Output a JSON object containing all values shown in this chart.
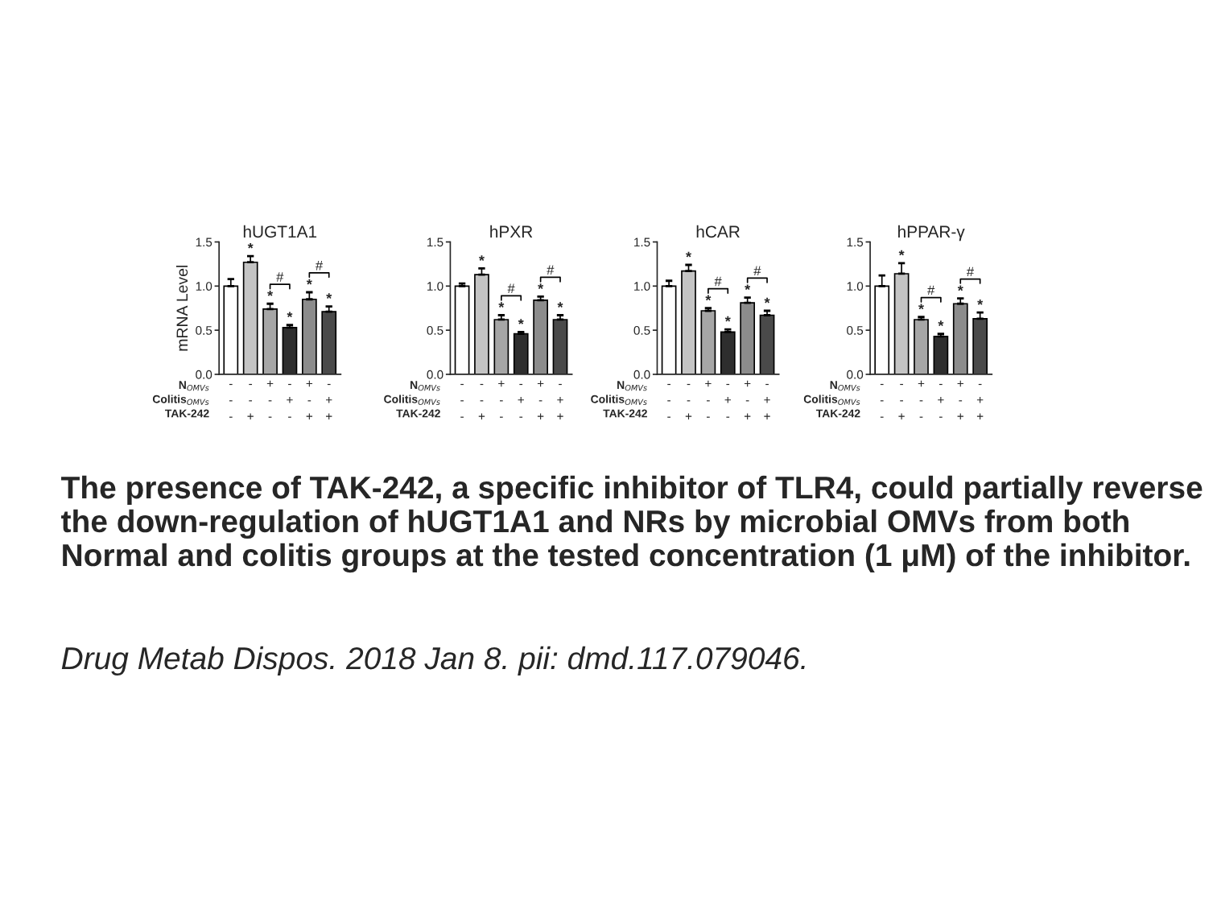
{
  "chart_data": [
    {
      "type": "bar",
      "title": "hUGT1A1",
      "ylabel": "mRNA Level",
      "categories": [
        "-\n-\n-",
        "-\n-\n+",
        "+\n-\n-",
        "-\n+\n-",
        "+\n-\n+",
        "-\n+\n+"
      ],
      "values": [
        1.0,
        1.27,
        0.74,
        0.53,
        0.85,
        0.71
      ],
      "errors": [
        0.08,
        0.07,
        0.06,
        0.03,
        0.08,
        0.06
      ],
      "value_labels": [
        null,
        "*",
        "*",
        "*",
        "*",
        "*"
      ],
      "colors": [
        "#ffffff",
        "#c4c4c4",
        "#a6a6a6",
        "#2e2e2e",
        "#8c8c8c",
        "#4a4a4a"
      ],
      "ylim": [
        0,
        1.5
      ],
      "yticks": [
        {
          "value": 0,
          "label": "0.0"
        },
        {
          "value": 0.5,
          "label": "0.5"
        },
        {
          "value": 1.0,
          "label": "1.0"
        },
        {
          "value": 1.5,
          "label": "1.5"
        }
      ],
      "annotations": [
        "N$_{OMVs}$",
        "Colitis$_{OMVs}$",
        "TAK-242",
        "#",
        "#"
      ]
    },
    {
      "type": "bar",
      "title": "hPXR",
      "categories": [
        "-\n-\n-",
        "-\n-\n+",
        "+\n-\n-",
        "-\n+\n-",
        "+\n-\n+",
        "-\n+\n+"
      ],
      "values": [
        1.0,
        1.13,
        0.62,
        0.46,
        0.84,
        0.62
      ],
      "errors": [
        0.03,
        0.07,
        0.05,
        0.02,
        0.04,
        0.05
      ],
      "value_labels": [
        null,
        "*",
        "*",
        "*",
        "*",
        "*"
      ],
      "colors": [
        "#ffffff",
        "#c4c4c4",
        "#a6a6a6",
        "#2e2e2e",
        "#8c8c8c",
        "#4a4a4a"
      ],
      "ylim": [
        0,
        1.5
      ],
      "yticks": [
        {
          "value": 0,
          "label": "0.0"
        },
        {
          "value": 0.5,
          "label": "0.5"
        },
        {
          "value": 1.0,
          "label": "1.0"
        },
        {
          "value": 1.5,
          "label": "1.5"
        }
      ],
      "annotations": [
        "N$_{OMVs}$",
        "Colitis$_{OMVs}$",
        "TAK-242",
        "#",
        "#"
      ]
    },
    {
      "type": "bar",
      "title": "hCAR",
      "categories": [
        "-\n-\n-",
        "-\n-\n+",
        "+\n-\n-",
        "-\n+\n-",
        "+\n-\n+",
        "-\n+\n+"
      ],
      "values": [
        1.0,
        1.17,
        0.72,
        0.48,
        0.81,
        0.67
      ],
      "errors": [
        0.06,
        0.07,
        0.03,
        0.03,
        0.06,
        0.05
      ],
      "value_labels": [
        null,
        "*",
        "*",
        "*",
        "*",
        "*"
      ],
      "colors": [
        "#ffffff",
        "#c4c4c4",
        "#a6a6a6",
        "#2e2e2e",
        "#8c8c8c",
        "#4a4a4a"
      ],
      "ylim": [
        0,
        1.5
      ],
      "yticks": [
        {
          "value": 0,
          "label": "0.0"
        },
        {
          "value": 0.5,
          "label": "0.5"
        },
        {
          "value": 1.0,
          "label": "1.0"
        },
        {
          "value": 1.5,
          "label": "1.5"
        }
      ],
      "annotations": [
        "N$_{OMVs}$",
        "Colitis$_{OMVs}$",
        "TAK-242",
        "#",
        "#"
      ]
    },
    {
      "type": "bar",
      "title": "hPPAR-γ",
      "categories": [
        "-\n-\n-",
        "-\n-\n+",
        "+\n-\n-",
        "-\n+\n-",
        "+\n-\n+",
        "-\n+\n+"
      ],
      "values": [
        1.0,
        1.14,
        0.62,
        0.43,
        0.8,
        0.63
      ],
      "errors": [
        0.12,
        0.12,
        0.03,
        0.03,
        0.06,
        0.07
      ],
      "value_labels": [
        null,
        "*",
        "*",
        "*",
        "*",
        "*"
      ],
      "colors": [
        "#ffffff",
        "#c4c4c4",
        "#a6a6a6",
        "#2e2e2e",
        "#8c8c8c",
        "#4a4a4a"
      ],
      "ylim": [
        0,
        1.5
      ],
      "yticks": [
        {
          "value": 0,
          "label": "0.0"
        },
        {
          "value": 0.5,
          "label": "0.5"
        },
        {
          "value": 1.0,
          "label": "1.0"
        },
        {
          "value": 1.5,
          "label": "1.5"
        }
      ],
      "annotations": [
        "N$_{OMVs}$",
        "Colitis$_{OMVs}$",
        "TAK-242",
        "#",
        "#"
      ]
    },
    {
      "type": "other",
      "annotations": [
        "The presence of TAK-242, a specific inhibitor of TLR4, could partially reverse the down-regulation of hUGT1A1 and NRs by microbial OMVs from both Normal and colitis groups at the tested concentration (1 μM) of the inhibitor.",
        "Drug Metab Dispos. 2018 Jan 8. pii: dmd.117.079046."
      ]
    }
  ]
}
